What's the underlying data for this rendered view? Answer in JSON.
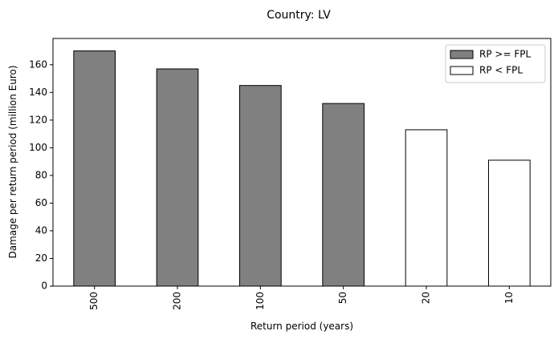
{
  "chart_data": {
    "type": "bar",
    "title": "Country: LV",
    "xlabel": "Return period (years)",
    "ylabel": "Damage per return period (million Euro)",
    "categories": [
      "500",
      "200",
      "100",
      "50",
      "20",
      "10"
    ],
    "values": [
      170,
      157,
      145,
      132,
      113,
      91
    ],
    "bar_group": [
      "RP >= FPL",
      "RP >= FPL",
      "RP >= FPL",
      "RP >= FPL",
      "RP < FPL",
      "RP < FPL"
    ],
    "ylim": [
      0,
      179
    ],
    "yticks": [
      "0",
      "20",
      "40",
      "60",
      "80",
      "100",
      "120",
      "140",
      "160"
    ],
    "grid": false,
    "legend": {
      "placement": "top-right",
      "entries": [
        {
          "label": "RP >= FPL",
          "color": "#808080"
        },
        {
          "label": "RP < FPL",
          "color": "#ffffff"
        }
      ]
    },
    "edge_color": "#000000"
  }
}
